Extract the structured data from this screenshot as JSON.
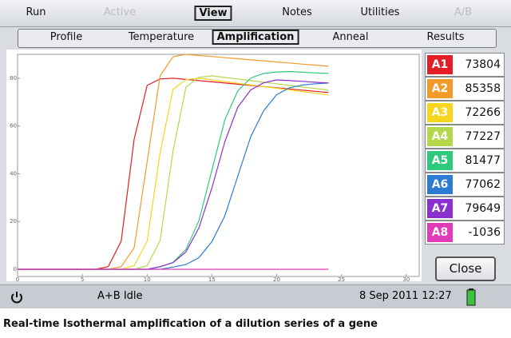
{
  "menu": {
    "items": [
      "Run",
      "Active",
      "View",
      "Notes",
      "Utilities",
      "A/B"
    ],
    "selected": 2,
    "disabled": [
      1,
      5
    ]
  },
  "tabs": {
    "items": [
      "Profile",
      "Temperature",
      "Amplification",
      "Anneal",
      "Results"
    ],
    "selected": 2
  },
  "chart_data": {
    "type": "line",
    "x": [
      0,
      1,
      2,
      3,
      4,
      5,
      6,
      7,
      8,
      9,
      10,
      11,
      12,
      13,
      14,
      15,
      16,
      17,
      18,
      19,
      20,
      21,
      22,
      23,
      24
    ],
    "series": [
      {
        "name": "A1",
        "color": "#e41e26",
        "values": [
          0,
          0,
          0,
          0,
          0,
          0,
          0,
          1.1,
          11.8,
          54.4,
          77,
          79.7,
          80,
          79.5,
          79,
          78.5,
          78,
          77.5,
          77,
          76.5,
          76,
          75.5,
          75,
          74.5,
          74
        ]
      },
      {
        "name": "A2",
        "color": "#f39a2b",
        "values": [
          0,
          0,
          0,
          0,
          0,
          0,
          0,
          0,
          1.1,
          9,
          45,
          81,
          89,
          90,
          89.5,
          89.1,
          88.6,
          88.2,
          87.7,
          87.3,
          86.8,
          86.4,
          85.9,
          85.5,
          85
        ]
      },
      {
        "name": "A3",
        "color": "#f7d51d",
        "values": [
          0,
          0,
          0,
          0,
          0,
          0,
          0,
          0,
          0,
          1.5,
          11.7,
          48.8,
          75.3,
          79.4,
          80,
          79.3,
          78.6,
          77.9,
          77.2,
          76.5,
          75.8,
          75.1,
          74.4,
          73.7,
          73
        ]
      },
      {
        "name": "A4",
        "color": "#b3d84a",
        "values": [
          0,
          0,
          0,
          0,
          0,
          0,
          0,
          0,
          0,
          0,
          1.5,
          12,
          49.4,
          76.3,
          80.4,
          81,
          80.3,
          79.7,
          79,
          78.3,
          77.7,
          77,
          76.3,
          75.7,
          75
        ]
      },
      {
        "name": "A5",
        "color": "#2ec97c",
        "values": [
          0,
          0,
          0,
          0,
          0,
          0,
          0,
          0,
          0,
          0,
          0,
          1,
          2.9,
          8.3,
          20.4,
          41.5,
          62.6,
          74.7,
          80.1,
          82,
          82.6,
          82.8,
          82.5,
          82.2,
          82
        ]
      },
      {
        "name": "A6",
        "color": "#2b7bd3",
        "values": [
          0,
          0,
          0,
          0,
          0,
          0,
          0,
          0,
          0,
          0,
          0,
          0,
          0.9,
          2,
          4.9,
          11.6,
          22.4,
          39,
          55.6,
          66.4,
          73.1,
          76,
          77.2,
          77.7,
          78
        ]
      },
      {
        "name": "A7",
        "color": "#8b2fd1",
        "values": [
          0,
          0,
          0,
          0,
          0,
          0,
          0,
          0,
          0,
          0,
          0,
          1.1,
          2.8,
          7.3,
          17.4,
          34.1,
          53.4,
          67.9,
          75.1,
          78.1,
          79.3,
          79,
          78.7,
          78.3,
          78
        ]
      },
      {
        "name": "A8",
        "color": "#e23bb9",
        "values": [
          0,
          0,
          0,
          0,
          0,
          0,
          0,
          0,
          0,
          0,
          0,
          0,
          0,
          0,
          0,
          0,
          0,
          0,
          0,
          0,
          0,
          0,
          0,
          0,
          0
        ]
      }
    ],
    "xlim": [
      0,
      31
    ],
    "ylim": [
      -3,
      90
    ],
    "xticks": [
      0,
      5,
      10,
      15,
      20,
      25,
      30
    ],
    "yticks": [
      0,
      20,
      40,
      60,
      80
    ]
  },
  "results": [
    73804,
    85358,
    72266,
    77227,
    81477,
    77062,
    79649,
    -1036
  ],
  "close_button": "Close",
  "status": {
    "state": "A+B Idle",
    "datetime": "8 Sep 2011 12:27"
  },
  "caption": "Real-time Isothermal amplification of a dilution series of a gene"
}
